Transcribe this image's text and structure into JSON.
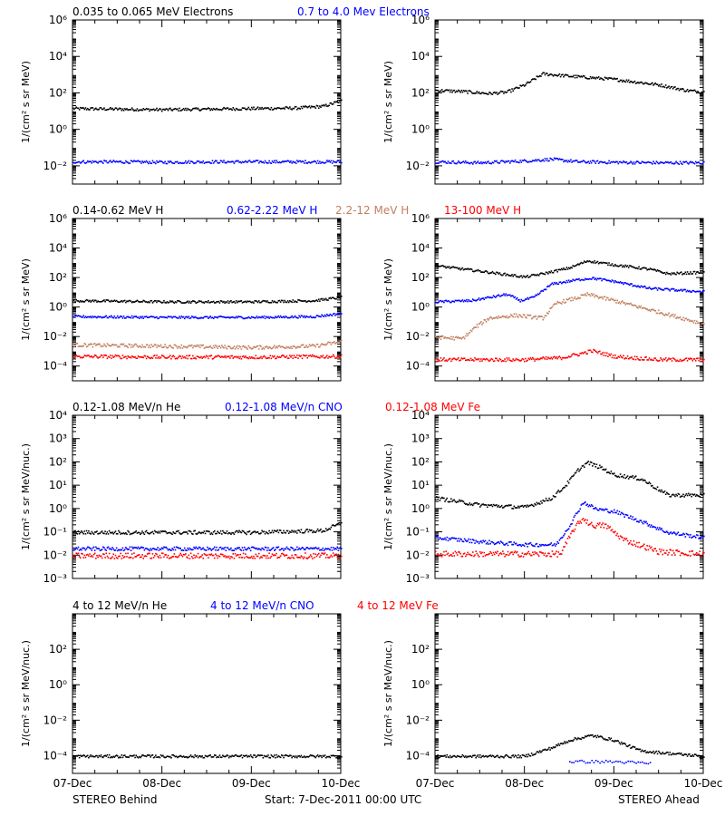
{
  "footer": {
    "left": "STEREO Behind",
    "center": "Start:  7-Dec-2011 00:00 UTC",
    "right": "STEREO Ahead"
  },
  "x_tick_labels": [
    "07-Dec",
    "08-Dec",
    "09-Dec",
    "10-Dec"
  ],
  "colors": {
    "black": "#000000",
    "blue": "#0000ff",
    "tan": "#c08060",
    "red": "#ff0000"
  },
  "chart_data": [
    {
      "type": "scatter",
      "row": 0,
      "side": "STEREO Behind",
      "ylabel": "1/(cm² s sr MeV)",
      "log_y": true,
      "ylim_exp": [
        -3,
        6
      ],
      "tick_exps": [
        -2,
        0,
        2,
        4,
        6
      ],
      "xlim_days": [
        0,
        3
      ],
      "x_tick_days": [
        0,
        1,
        2,
        3
      ],
      "series": [
        {
          "name": "0.035 to 0.065 MeV Electrons",
          "color": "black",
          "x": [
            0,
            0.5,
            1,
            1.5,
            2,
            2.5,
            2.8,
            3
          ],
          "y": [
            15,
            14,
            13,
            14,
            15,
            16,
            20,
            40
          ]
        },
        {
          "name": "0.7 to 4.0 Mev Electrons",
          "color": "blue",
          "x": [
            0,
            0.5,
            1,
            1.5,
            2,
            2.5,
            3
          ],
          "y": [
            0.018,
            0.018,
            0.017,
            0.018,
            0.018,
            0.018,
            0.018
          ]
        }
      ]
    },
    {
      "type": "scatter",
      "row": 0,
      "side": "STEREO Ahead",
      "ylabel": "1/(cm² s sr MeV)",
      "log_y": true,
      "ylim_exp": [
        -3,
        6
      ],
      "tick_exps": [
        -2,
        0,
        2,
        4,
        6
      ],
      "xlim_days": [
        0,
        3
      ],
      "x_tick_days": [
        0,
        1,
        2,
        3
      ],
      "series": [
        {
          "color": "black",
          "x": [
            0,
            0.3,
            0.6,
            0.8,
            1,
            1.2,
            1.5,
            2,
            2.5,
            2.8,
            3
          ],
          "y": [
            150,
            130,
            100,
            120,
            300,
            1200,
            900,
            600,
            300,
            150,
            120
          ]
        },
        {
          "color": "blue",
          "x": [
            0,
            0.5,
            1,
            1.3,
            1.6,
            2,
            2.5,
            3
          ],
          "y": [
            0.018,
            0.016,
            0.02,
            0.025,
            0.018,
            0.017,
            0.016,
            0.016
          ]
        }
      ]
    },
    {
      "type": "scatter",
      "row": 1,
      "side": "STEREO Behind",
      "ylabel": "1/(cm² s sr MeV)",
      "log_y": true,
      "ylim_exp": [
        -5,
        6
      ],
      "tick_exps": [
        -4,
        -2,
        0,
        2,
        4,
        6
      ],
      "xlim_days": [
        0,
        3
      ],
      "x_tick_days": [
        0,
        1,
        2,
        3
      ],
      "series": [
        {
          "name": "0.14-0.62 MeV H",
          "color": "black",
          "x": [
            0,
            1,
            2,
            2.7,
            3
          ],
          "y": [
            3,
            2.5,
            2.5,
            3,
            5
          ]
        },
        {
          "name": "0.62-2.22 MeV H",
          "color": "blue",
          "x": [
            0,
            1,
            2,
            2.7,
            3
          ],
          "y": [
            0.25,
            0.22,
            0.22,
            0.25,
            0.4
          ]
        },
        {
          "name": "2.2-12 MeV H",
          "color": "tan",
          "x": [
            0,
            1,
            2,
            2.7,
            3
          ],
          "y": [
            0.003,
            0.0025,
            0.002,
            0.0025,
            0.005
          ]
        },
        {
          "name": "13-100 MeV H",
          "color": "red",
          "x": [
            0,
            1,
            2,
            3
          ],
          "y": [
            0.0005,
            0.00045,
            0.00045,
            0.0005
          ]
        }
      ]
    },
    {
      "type": "scatter",
      "row": 1,
      "side": "STEREO Ahead",
      "ylabel": "1/(cm² s sr MeV)",
      "log_y": true,
      "ylim_exp": [
        -5,
        6
      ],
      "tick_exps": [
        -4,
        -2,
        0,
        2,
        4,
        6
      ],
      "xlim_days": [
        0,
        3
      ],
      "x_tick_days": [
        0,
        1,
        2,
        3
      ],
      "series": [
        {
          "color": "black",
          "x": [
            0,
            0.5,
            1,
            1.2,
            1.5,
            1.7,
            2,
            2.4,
            2.6,
            3
          ],
          "y": [
            700,
            300,
            120,
            200,
            500,
            1500,
            800,
            400,
            200,
            250
          ]
        },
        {
          "color": "blue",
          "x": [
            0,
            0.4,
            0.8,
            0.95,
            1.1,
            1.3,
            1.6,
            1.75,
            2,
            2.4,
            3
          ],
          "y": [
            2.5,
            3,
            8,
            3,
            5,
            40,
            80,
            100,
            60,
            20,
            12
          ]
        },
        {
          "color": "tan",
          "x": [
            0,
            0.3,
            0.45,
            0.6,
            0.9,
            1.2,
            1.35,
            1.6,
            1.7,
            2,
            2.5,
            3
          ],
          "y": [
            0.01,
            0.008,
            0.05,
            0.2,
            0.3,
            0.2,
            2,
            5,
            8,
            3,
            0.5,
            0.08
          ]
        },
        {
          "color": "red",
          "x": [
            0,
            1,
            1.4,
            1.6,
            1.75,
            2,
            2.5,
            3
          ],
          "y": [
            0.0003,
            0.0003,
            0.0004,
            0.0007,
            0.0012,
            0.0005,
            0.0003,
            0.0003
          ]
        }
      ]
    },
    {
      "type": "scatter",
      "row": 2,
      "side": "STEREO Behind",
      "ylabel": "1/(cm² s sr MeV/nuc.)",
      "log_y": true,
      "ylim_exp": [
        -3,
        4
      ],
      "tick_exps": [
        -3,
        -2,
        -1,
        0,
        1,
        2,
        3,
        4
      ],
      "xlim_days": [
        0,
        3
      ],
      "x_tick_days": [
        0,
        1,
        2,
        3
      ],
      "series": [
        {
          "name": "0.12-1.08 MeV/n He",
          "color": "black",
          "x": [
            0,
            1,
            2,
            2.8,
            3
          ],
          "y": [
            0.1,
            0.1,
            0.1,
            0.12,
            0.25
          ]
        },
        {
          "name": "0.12-1.08 MeV/n CNO",
          "color": "blue",
          "x": [
            0,
            1,
            2,
            3
          ],
          "y": [
            0.02,
            0.02,
            0.02,
            0.02
          ]
        },
        {
          "name": "0.12-1.08 MeV Fe",
          "color": "red",
          "x": [
            0,
            1,
            2,
            3
          ],
          "y": [
            0.01,
            0.01,
            0.01,
            0.01
          ]
        }
      ]
    },
    {
      "type": "scatter",
      "row": 2,
      "side": "STEREO Ahead",
      "ylabel": "1/(cm² s sr MeV/nuc.)",
      "log_y": true,
      "ylim_exp": [
        -3,
        4
      ],
      "tick_exps": [
        -3,
        -2,
        -1,
        0,
        1,
        2,
        3,
        4
      ],
      "xlim_days": [
        0,
        3
      ],
      "x_tick_days": [
        0,
        1,
        2,
        3
      ],
      "series": [
        {
          "color": "black",
          "x": [
            0,
            0.5,
            1,
            1.3,
            1.45,
            1.6,
            1.7,
            1.85,
            2,
            2.3,
            2.6,
            3
          ],
          "y": [
            3,
            1.5,
            1.2,
            3,
            10,
            50,
            100,
            60,
            30,
            20,
            4,
            4
          ]
        },
        {
          "color": "blue",
          "x": [
            0,
            0.5,
            1,
            1.35,
            1.5,
            1.65,
            1.8,
            2,
            2.3,
            2.6,
            3
          ],
          "y": [
            0.06,
            0.04,
            0.03,
            0.03,
            0.2,
            2,
            1,
            0.8,
            0.3,
            0.1,
            0.06
          ]
        },
        {
          "color": "red",
          "x": [
            0,
            1,
            1.4,
            1.55,
            1.65,
            1.75,
            1.9,
            2.1,
            2.5,
            3
          ],
          "y": [
            0.012,
            0.012,
            0.012,
            0.15,
            0.4,
            0.2,
            0.2,
            0.05,
            0.015,
            0.012
          ]
        }
      ]
    },
    {
      "type": "scatter",
      "row": 3,
      "side": "STEREO Behind",
      "ylabel": "1/(cm² s sr MeV/nuc.)",
      "log_y": true,
      "ylim_exp": [
        -5,
        4
      ],
      "tick_exps": [
        -4,
        -2,
        0,
        2
      ],
      "xlim_days": [
        0,
        3
      ],
      "x_tick_days": [
        0,
        1,
        2,
        3
      ],
      "series": [
        {
          "name": "4 to 12 MeV/n He",
          "color": "black",
          "x": [
            0,
            1,
            2,
            3
          ],
          "y": [
            0.0001,
            0.0001,
            0.0001,
            0.0001
          ]
        },
        {
          "name": "4 to 12 MeV/n CNO",
          "color": "blue",
          "x": [],
          "y": []
        },
        {
          "name": "4 to 12 MeV Fe",
          "color": "red",
          "x": [],
          "y": []
        }
      ]
    },
    {
      "type": "scatter",
      "row": 3,
      "side": "STEREO Ahead",
      "ylabel": "1/(cm² s sr MeV/nuc.)",
      "log_y": true,
      "ylim_exp": [
        -5,
        4
      ],
      "tick_exps": [
        -4,
        -2,
        0,
        2
      ],
      "xlim_days": [
        0,
        3
      ],
      "x_tick_days": [
        0,
        1,
        2,
        3
      ],
      "series": [
        {
          "color": "black",
          "x": [
            0,
            1,
            1.3,
            1.5,
            1.75,
            2,
            2.3,
            3
          ],
          "y": [
            0.0001,
            0.0001,
            0.0003,
            0.0008,
            0.0015,
            0.0008,
            0.0002,
            0.0001
          ]
        },
        {
          "color": "blue",
          "x": [
            1.5,
            2,
            2.4
          ],
          "y": [
            5e-05,
            5e-05,
            4e-05
          ]
        }
      ]
    }
  ]
}
